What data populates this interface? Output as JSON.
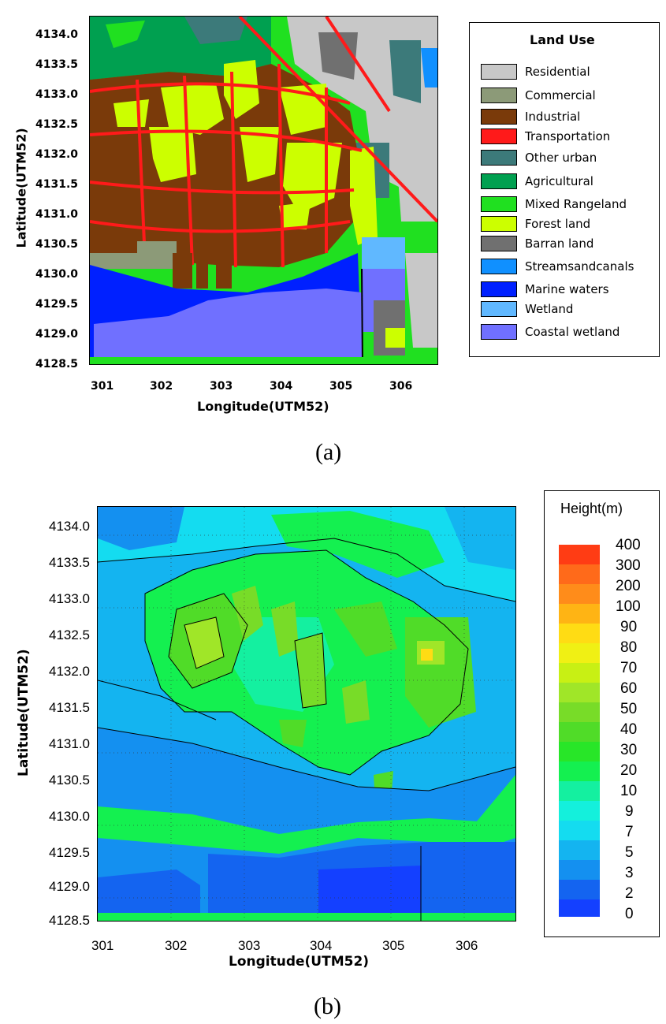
{
  "panel_a": {
    "caption": "(a)",
    "xlabel": "Longitude(UTM52)",
    "ylabel": "Latitude(UTM52)",
    "x_ticks": [
      "301",
      "302",
      "303",
      "304",
      "305",
      "306"
    ],
    "y_ticks": [
      "4134.0",
      "4133.5",
      "4133.0",
      "4132.5",
      "4132.0",
      "4131.5",
      "4131.0",
      "4130.5",
      "4130.0",
      "4129.5",
      "4129.0",
      "4128.5"
    ],
    "legend_title": "Land Use",
    "legend": [
      {
        "label": "Residential",
        "color": "#c8c8c8"
      },
      {
        "label": "Commercial",
        "color": "#8c9a78"
      },
      {
        "label": "Industrial",
        "color": "#7a3a0a"
      },
      {
        "label": "Transportation",
        "color": "#ff1a1a"
      },
      {
        "label": "Other urban",
        "color": "#3c7a7a"
      },
      {
        "label": "Agricultural",
        "color": "#00a050"
      },
      {
        "label": "Mixed Rangeland",
        "color": "#20e020"
      },
      {
        "label": "Forest land",
        "color": "#ccff00"
      },
      {
        "label": "Barran land",
        "color": "#707070"
      },
      {
        "label": "Streamsandcanals",
        "color": "#1090ff"
      },
      {
        "label": "Marine waters",
        "color": "#0020ff"
      },
      {
        "label": "Wetland",
        "color": "#60b8ff"
      },
      {
        "label": "Coastal wetland",
        "color": "#7070ff"
      }
    ]
  },
  "panel_b": {
    "caption": "(b)",
    "xlabel": "Longitude(UTM52)",
    "ylabel": "Latitude(UTM52)",
    "x_ticks": [
      "301",
      "302",
      "303",
      "304",
      "305",
      "306"
    ],
    "y_ticks": [
      "4134.0",
      "4133.5",
      "4133.0",
      "4132.5",
      "4132.0",
      "4131.5",
      "4131.0",
      "4130.5",
      "4130.0",
      "4129.5",
      "4129.0",
      "4128.5"
    ],
    "legend_title": "Height(m)",
    "legend": [
      {
        "label": "400",
        "color": "#ff3c14"
      },
      {
        "label": "300",
        "color": "#ff6a1a"
      },
      {
        "label": "200",
        "color": "#ff8c1a"
      },
      {
        "label": "100",
        "color": "#ffb414"
      },
      {
        "label": "90",
        "color": "#ffdc14"
      },
      {
        "label": "80",
        "color": "#f0f014"
      },
      {
        "label": "70",
        "color": "#c8f014"
      },
      {
        "label": "60",
        "color": "#a0e628"
      },
      {
        "label": "50",
        "color": "#78dc28"
      },
      {
        "label": "40",
        "color": "#50dc28"
      },
      {
        "label": "30",
        "color": "#28e628"
      },
      {
        "label": "20",
        "color": "#14f050"
      },
      {
        "label": "10",
        "color": "#14f0a0"
      },
      {
        "label": "9",
        "color": "#14f0dc"
      },
      {
        "label": "7",
        "color": "#14dcf0"
      },
      {
        "label": "5",
        "color": "#14b4f0"
      },
      {
        "label": "3",
        "color": "#1490f0"
      },
      {
        "label": "2",
        "color": "#1464f0"
      },
      {
        "label": "0",
        "color": "#1440ff"
      }
    ]
  }
}
